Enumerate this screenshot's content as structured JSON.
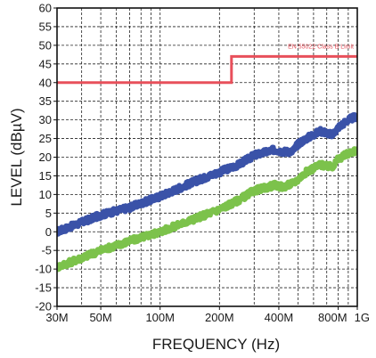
{
  "chart_data": {
    "type": "line",
    "title": "",
    "xlabel": "FREQUENCY (Hz)",
    "ylabel": "LEVEL (dBµV)",
    "x_scale": "log",
    "xlim": [
      30000000,
      1000000000
    ],
    "ylim": [
      -20,
      60
    ],
    "grid": true,
    "x_ticks": [
      {
        "value": 30000000,
        "label": "30M"
      },
      {
        "value": 50000000,
        "label": "50M"
      },
      {
        "value": 100000000,
        "label": "100M"
      },
      {
        "value": 200000000,
        "label": "200M"
      },
      {
        "value": 400000000,
        "label": "400M"
      },
      {
        "value": 800000000,
        "label": "800M"
      },
      {
        "value": 1000000000,
        "label": "1G"
      }
    ],
    "y_ticks": [
      -20,
      -15,
      -10,
      -5,
      0,
      5,
      10,
      15,
      20,
      25,
      30,
      35,
      40,
      45,
      50,
      55,
      60
    ],
    "series": [
      {
        "color": "#3a52a8",
        "x": [
          30000000,
          40000000,
          50000000,
          70000000,
          100000000,
          150000000,
          200000000,
          250000000,
          300000000,
          380000000,
          420000000,
          470000000,
          500000000,
          550000000,
          650000000,
          700000000,
          750000000,
          800000000,
          900000000,
          1000000000
        ],
        "y": [
          0,
          2.5,
          4.5,
          6.5,
          9.5,
          13.5,
          16,
          18,
          20.5,
          22,
          21.5,
          21.5,
          23.5,
          25,
          27,
          26.5,
          26,
          28,
          30,
          31
        ]
      },
      {
        "color": "#7cc24b",
        "x": [
          30000000,
          40000000,
          50000000,
          70000000,
          100000000,
          150000000,
          200000000,
          250000000,
          300000000,
          380000000,
          420000000,
          470000000,
          500000000,
          550000000,
          650000000,
          700000000,
          750000000,
          800000000,
          900000000,
          1000000000
        ],
        "y": [
          -9.5,
          -7,
          -5,
          -2.5,
          0,
          3.5,
          6,
          8.5,
          11,
          12.5,
          12,
          13,
          14,
          16,
          18,
          17.5,
          17.5,
          19.5,
          21,
          22
        ]
      },
      {
        "name": "EN 55022 Class B Limit",
        "color": "#e8505b",
        "type": "step",
        "x": [
          30000000,
          230000000,
          230000000,
          1000000000
        ],
        "y": [
          40,
          40,
          47,
          47
        ]
      }
    ],
    "annotations": [
      {
        "text": "EN 55022 Class B Limit",
        "color": "#e8505b"
      }
    ]
  }
}
